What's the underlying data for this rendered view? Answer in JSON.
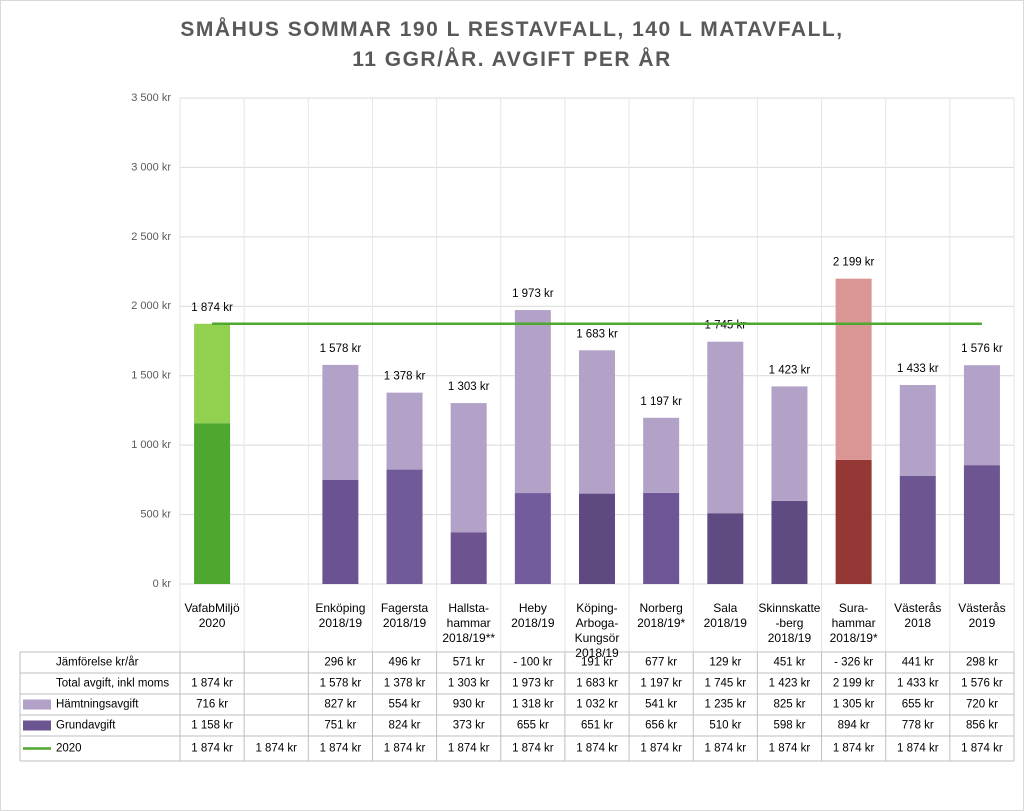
{
  "chart_data": {
    "type": "stacked_bar",
    "title": "SMÅHUS SOMMAR 190 L RESTAVFALL, 140 L MATAVFALL,\n11 GGR/ÅR. AVGIFT PER ÅR",
    "categories": [
      "VafabMiljö\n2020",
      null,
      "Enköping\n2018/19",
      "Fagersta\n2018/19",
      "Hallsta-\nhammar\n2018/19**",
      "Heby\n2018/19",
      "Köping-\nArboga-\nKungsör\n2018/19",
      "Norberg\n2018/19*",
      "Sala\n2018/19",
      "Skinnskatte\n-berg\n2018/19",
      "Sura-\nhammar\n2018/19*",
      "Västerås\n2018",
      "Västerås\n2019"
    ],
    "ylim": [
      0,
      3500
    ],
    "yticks": [
      {
        "value": 0,
        "label": "0 kr"
      },
      {
        "value": 500,
        "label": "500 kr"
      },
      {
        "value": 1000,
        "label": "1 000 kr"
      },
      {
        "value": 1500,
        "label": "1 500 kr"
      },
      {
        "value": 2000,
        "label": "2 000 kr"
      },
      {
        "value": 2500,
        "label": "2 500 kr"
      },
      {
        "value": 3000,
        "label": "3 000 kr"
      },
      {
        "value": 3500,
        "label": "3 500 kr"
      }
    ],
    "grid": true,
    "series": [
      {
        "name": "Grundavgift",
        "color": "#6b5591",
        "colors": [
          "#4ea72e",
          null,
          "#6b5290",
          "#715a98",
          "#6d5491",
          "#735c9b",
          "#5e4a80",
          "#6d5596",
          "#5f4b81",
          "#5f4b81",
          "#953735",
          "#6d5591",
          "#6d5591"
        ],
        "values": [
          1158,
          null,
          751,
          824,
          373,
          655,
          651,
          656,
          510,
          598,
          894,
          778,
          856
        ],
        "value_labels": [
          "1 158 kr",
          null,
          "751 kr",
          "824 kr",
          "373 kr",
          "655 kr",
          "651 kr",
          "656 kr",
          "510 kr",
          "598 kr",
          "894 kr",
          "778 kr",
          "856 kr"
        ]
      },
      {
        "name": "Hämtningsavgift",
        "color": "#b3a2c7",
        "colors": [
          "#92d050",
          null,
          "#b3a2c7",
          "#b3a2c7",
          "#b3a2c7",
          "#b3a2c7",
          "#b3a2c7",
          "#b3a2c7",
          "#b3a2c7",
          "#b3a2c7",
          "#da9694",
          "#b3a2c7",
          "#b3a2c7"
        ],
        "values": [
          716,
          null,
          827,
          554,
          930,
          1318,
          1032,
          541,
          1235,
          825,
          1305,
          655,
          720
        ],
        "value_labels": [
          "716 kr",
          null,
          "827 kr",
          "554 kr",
          "930 kr",
          "1 318 kr",
          "1 032 kr",
          "541 kr",
          "1 235 kr",
          "825 kr",
          "1 305 kr",
          "655 kr",
          "720 kr"
        ]
      },
      {
        "name": "2020",
        "color": "#4ea72e",
        "type": "line",
        "values": [
          1874,
          1874,
          1874,
          1874,
          1874,
          1874,
          1874,
          1874,
          1874,
          1874,
          1874,
          1874,
          1874
        ],
        "value_labels": [
          "1 874 kr",
          "1 874 kr",
          "1 874 kr",
          "1 874 kr",
          "1 874 kr",
          "1 874 kr",
          "1 874 kr",
          "1 874 kr",
          "1 874 kr",
          "1 874 kr",
          "1 874 kr",
          "1 874 kr",
          "1 874 kr"
        ]
      }
    ],
    "totals": {
      "name": "Total avgift, inkl moms",
      "values": [
        1874,
        null,
        1578,
        1378,
        1303,
        1973,
        1683,
        1197,
        1745,
        1423,
        2199,
        1433,
        1576
      ],
      "value_labels": [
        "1 874 kr",
        null,
        "1 578 kr",
        "1 378 kr",
        "1 303 kr",
        "1 973 kr",
        "1 683 kr",
        "1 197 kr",
        "1 745 kr",
        "1 423 kr",
        "2 199 kr",
        "1 433 kr",
        "1 576 kr"
      ]
    },
    "comparison": {
      "name": "Jämförelse kr/år",
      "values": [
        null,
        null,
        296,
        496,
        571,
        -100,
        191,
        677,
        129,
        451,
        -326,
        441,
        298
      ],
      "value_labels": [
        null,
        null,
        "296 kr",
        "496 kr",
        "571 kr",
        "- 100 kr",
        "191 kr",
        "677 kr",
        "129 kr",
        "451 kr",
        "- 326 kr",
        "441 kr",
        "298 kr"
      ]
    }
  }
}
